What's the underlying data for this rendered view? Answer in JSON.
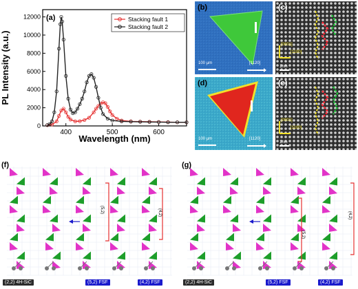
{
  "figure": {
    "panels": {
      "a": "(a)",
      "b": "(b)",
      "c": "(c)",
      "d": "(d)",
      "e": "(e)",
      "f": "(f)",
      "g": "(g)"
    },
    "micrograph_labels": {
      "b_scale": "100 µm",
      "b_dir": "[1120]",
      "d_scale": "100 µm",
      "d_dir": "[1120]",
      "c_axis1": "[0001]",
      "c_axis2": "[1100]",
      "c_scale": "1nm",
      "e_axis1": "[0001]",
      "e_axis2": "[1100]",
      "e_scale": "1nm"
    },
    "stacking_labels": {
      "f_bracket1": "(5,2)",
      "f_bracket2": "(4,2)",
      "g_bracket1": "(5,2)",
      "g_bracket2": "(4,2)",
      "f_tag1": "(2,2) 4H-SiC",
      "f_tag2": "(5,2) FSF",
      "f_tag3": "(4,2) FSF",
      "g_tag1": "(2,2) 4H-SiC",
      "g_tag2": "(5,2) FSF",
      "g_tag3": "(4,2) FSF"
    },
    "colors": {
      "magenta": "#e233c8",
      "green": "#1d9e2a",
      "sf1": "#e53030",
      "sf2": "#222222",
      "b_bg": "#2f6fbf",
      "b_tri": "#3fc83a",
      "d_bg": "#3aa7c9",
      "d_tri": "#e0261e"
    }
  },
  "chart_data": {
    "type": "line",
    "xlabel": "Wavelength (nm)",
    "ylabel": "PL Intensity (a.u.)",
    "xlim": [
      350,
      660
    ],
    "ylim": [
      0,
      12800
    ],
    "xticks": [
      400,
      500,
      600
    ],
    "yticks": [
      0,
      2000,
      4000,
      6000,
      8000,
      10000,
      12000
    ],
    "legend_position": "top-right",
    "series": [
      {
        "name": "Stacking fault 1",
        "x": [
          360,
          370,
          380,
          385,
          390,
          395,
          400,
          405,
          410,
          420,
          430,
          440,
          450,
          460,
          465,
          470,
          475,
          480,
          485,
          490,
          495,
          500,
          510,
          520,
          540,
          560,
          580,
          600,
          620,
          640,
          660
        ],
        "values": [
          80,
          150,
          500,
          1100,
          1700,
          1900,
          1500,
          1000,
          700,
          500,
          520,
          650,
          900,
          1500,
          1900,
          2200,
          2450,
          2600,
          2500,
          2100,
          1600,
          1200,
          800,
          600,
          500,
          480,
          460,
          440,
          420,
          400,
          400
        ]
      },
      {
        "name": "Stacking fault 2",
        "x": [
          360,
          365,
          370,
          375,
          380,
          385,
          388,
          390,
          392,
          395,
          400,
          405,
          410,
          415,
          420,
          425,
          430,
          435,
          440,
          445,
          450,
          455,
          460,
          465,
          470,
          475,
          480,
          490,
          500,
          520,
          540,
          560,
          580,
          600,
          620,
          640,
          660
        ],
        "values": [
          100,
          200,
          500,
          1500,
          3800,
          8500,
          11200,
          12000,
          11500,
          9500,
          5500,
          3000,
          1800,
          1400,
          1500,
          1900,
          2400,
          3000,
          3800,
          4800,
          5500,
          5700,
          5300,
          4300,
          3100,
          2000,
          1300,
          800,
          600,
          500,
          470,
          450,
          430,
          420,
          400,
          400,
          400
        ]
      }
    ]
  }
}
